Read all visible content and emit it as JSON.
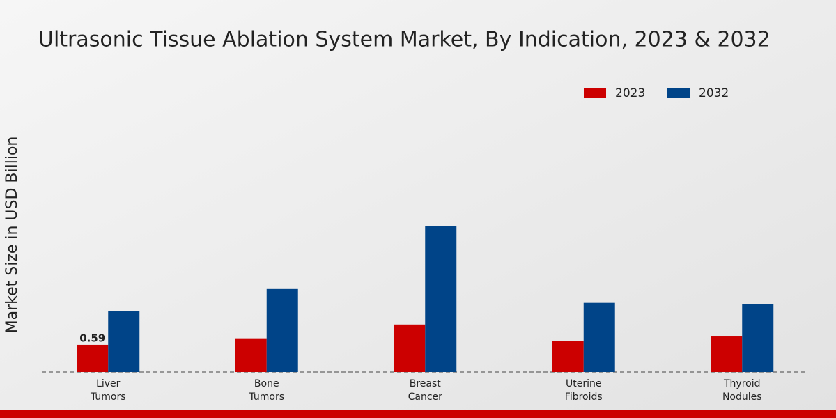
{
  "chart_data": {
    "type": "bar",
    "title": "Ultrasonic Tissue Ablation System Market, By Indication, 2023 & 2032",
    "y_label": "Market Size in USD Billion",
    "categories": [
      "Liver Tumors",
      "Bone Tumors",
      "Breast Cancer",
      "Uterine Fibroids",
      "Thyroid Nodules"
    ],
    "series": [
      {
        "name": "2023",
        "color": "#cc0000",
        "values": [
          0.59,
          0.73,
          1.03,
          0.67,
          0.77
        ],
        "value_labels": [
          "0.59",
          null,
          null,
          null,
          null
        ]
      },
      {
        "name": "2032",
        "color": "#004488",
        "values": [
          1.32,
          1.8,
          3.16,
          1.5,
          1.47
        ]
      }
    ],
    "ylim": [
      0,
      5.8
    ],
    "legend": "top-right"
  }
}
